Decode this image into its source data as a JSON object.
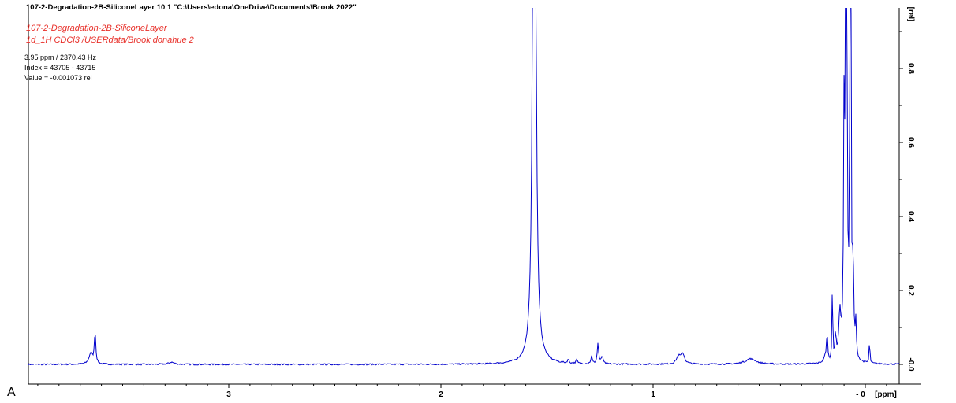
{
  "header": {
    "title": "107-2-Degradation-2B-SiliconeLayer  10  1  \"C:\\Users\\edona\\OneDrive\\Documents\\Brook 2022\"",
    "subtitle_line1": "107-2-Degradation-2B-SiliconeLayer",
    "subtitle_line2": "1d_1H CDCl3 /USERdata/Brook donahue 2"
  },
  "cursor": {
    "line1": "3.95 ppm / 2370.43 Hz",
    "line2": "Index = 43705 - 43715",
    "line3": "Value = -0.001073  rel"
  },
  "panel_label": "A",
  "colors": {
    "spectrum": "#0000cc",
    "subtitle": "#e8302a",
    "axis": "#000000"
  },
  "chart_data": {
    "type": "line",
    "x_label": "[ppm]",
    "y_label": "[rel]",
    "x_reversed": true,
    "xlim": [
      4.0,
      -0.1
    ],
    "ylim": [
      -0.01,
      0.97
    ],
    "x_ticks": [
      {
        "value": 3,
        "label": "3"
      },
      {
        "value": 2,
        "label": "2"
      },
      {
        "value": 1,
        "label": "1"
      },
      {
        "value": 0,
        "label": "- 0"
      }
    ],
    "y_ticks": [
      {
        "value": 0.0,
        "label": "-0.0"
      },
      {
        "value": 0.2,
        "label": "0.2"
      },
      {
        "value": 0.4,
        "label": "0.4"
      },
      {
        "value": 0.6,
        "label": "0.6"
      },
      {
        "value": 0.8,
        "label": "0.8"
      }
    ],
    "peaks": [
      {
        "ppm": 3.65,
        "height": 0.03,
        "width": 0.01
      },
      {
        "ppm": 3.63,
        "height": 0.085,
        "width": 0.004
      },
      {
        "ppm": 3.27,
        "height": 0.006,
        "width": 0.015
      },
      {
        "ppm": 1.56,
        "height": 3.0,
        "width": 0.006
      },
      {
        "ppm": 1.4,
        "height": 0.01,
        "width": 0.004
      },
      {
        "ppm": 1.36,
        "height": 0.01,
        "width": 0.004
      },
      {
        "ppm": 1.29,
        "height": 0.02,
        "width": 0.004
      },
      {
        "ppm": 1.26,
        "height": 0.055,
        "width": 0.004
      },
      {
        "ppm": 1.24,
        "height": 0.02,
        "width": 0.005
      },
      {
        "ppm": 0.88,
        "height": 0.02,
        "width": 0.012
      },
      {
        "ppm": 0.86,
        "height": 0.026,
        "width": 0.01
      },
      {
        "ppm": 0.54,
        "height": 0.015,
        "width": 0.03
      },
      {
        "ppm": 0.19,
        "height": 0.015,
        "width": 0.008
      },
      {
        "ppm": 0.18,
        "height": 0.08,
        "width": 0.003
      },
      {
        "ppm": 0.155,
        "height": 0.23,
        "width": 0.002
      },
      {
        "ppm": 0.14,
        "height": 0.07,
        "width": 0.003
      },
      {
        "ppm": 0.12,
        "height": 0.12,
        "width": 0.006
      },
      {
        "ppm": 0.1,
        "height": 0.6,
        "width": 0.003
      },
      {
        "ppm": 0.09,
        "height": 3.0,
        "width": 0.0025
      },
      {
        "ppm": 0.07,
        "height": 3.0,
        "width": 0.002
      },
      {
        "ppm": 0.06,
        "height": 0.17,
        "width": 0.002
      },
      {
        "ppm": 0.055,
        "height": 0.17,
        "width": 0.002
      },
      {
        "ppm": 0.045,
        "height": 0.1,
        "width": 0.003
      },
      {
        "ppm": -0.02,
        "height": 0.07,
        "width": 0.002
      }
    ]
  }
}
